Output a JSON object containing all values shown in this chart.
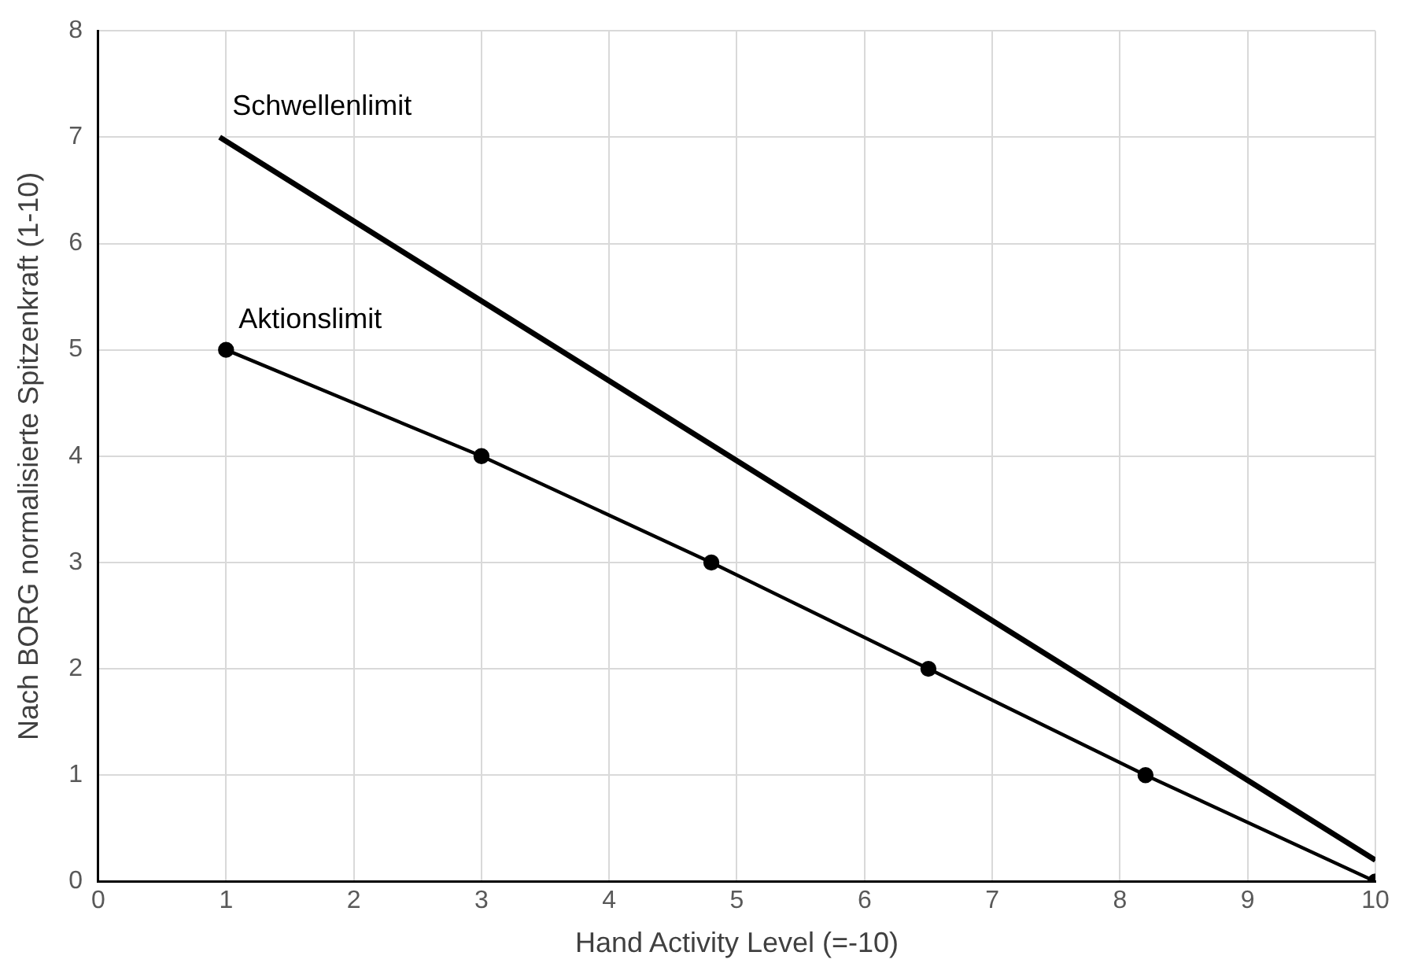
{
  "chart_data": {
    "type": "line",
    "xlabel": "Hand Activity Level (=-10)",
    "ylabel": "Nach BORG normalisierte Spitzenkraft (1-10)",
    "xlim": [
      0,
      10
    ],
    "xticks": [
      0,
      1,
      2,
      3,
      4,
      5,
      6,
      7,
      8,
      9,
      10
    ],
    "ylim": [
      0,
      8
    ],
    "yticks": [
      0,
      1,
      2,
      3,
      4,
      5,
      6,
      7,
      8
    ],
    "grid": true,
    "legend": false,
    "series": [
      {
        "name": "Schwellenlimit",
        "color": "#000000",
        "x": [
          0.95,
          10
        ],
        "values": [
          7,
          0.2
        ],
        "marker": "none"
      },
      {
        "name": "Aktionslimit",
        "color": "#000000",
        "x": [
          1,
          3,
          4.8,
          6.5,
          8.2,
          10
        ],
        "values": [
          5,
          4,
          3,
          2,
          1,
          0
        ],
        "marker": "circle"
      }
    ]
  }
}
